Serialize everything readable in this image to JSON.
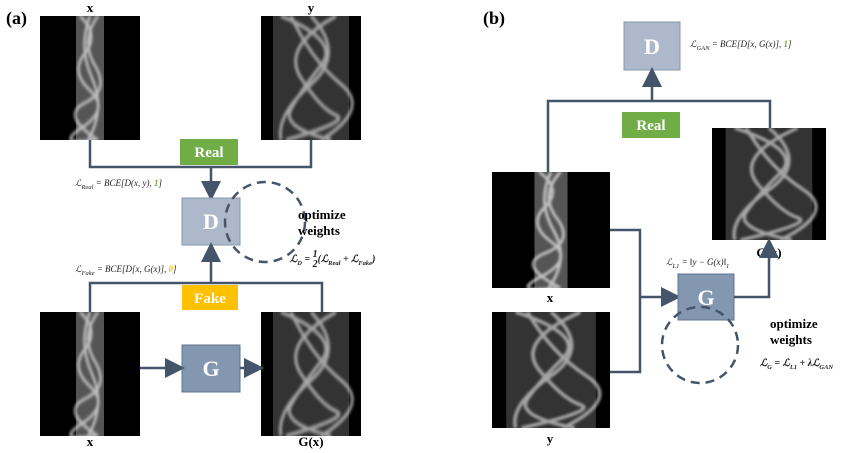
{
  "panel_a": {
    "label": "(a)",
    "x_top": "x",
    "y_top": "y",
    "x_bottom": "x",
    "gx_bottom": "G(x)",
    "real": "Real",
    "fake": "Fake",
    "discriminator": "D",
    "generator": "G",
    "optimize": [
      "optimize",
      "weights"
    ],
    "loss_real": [
      {
        "text": "ℒ"
      },
      {
        "text": "Real",
        "style": "sub"
      },
      {
        "text": " = BCE[D(x, y), "
      },
      {
        "text": "1",
        "style": "green"
      },
      {
        "text": "]"
      }
    ],
    "loss_fake": [
      {
        "text": "ℒ"
      },
      {
        "text": "Fake",
        "style": "sub"
      },
      {
        "text": " = BCE[D[x, G(x)], "
      },
      {
        "text": "0",
        "style": "gold"
      },
      {
        "text": "]"
      }
    ],
    "loss_d": [
      {
        "text": "ℒ"
      },
      {
        "text": "D",
        "style": "sub"
      },
      {
        "text": " = "
      },
      {
        "text": "1",
        "style": "num"
      },
      {
        "text": "2",
        "style": "den"
      },
      {
        "text": "(ℒ"
      },
      {
        "text": "Real",
        "style": "sub"
      },
      {
        "text": " + ℒ"
      },
      {
        "text": "Fake",
        "style": "sub"
      },
      {
        "text": ")"
      }
    ]
  },
  "panel_b": {
    "label": "(b)",
    "discriminator": "D",
    "real": "Real",
    "gx": "G(x)",
    "x": "x",
    "y": "y",
    "generator": "G",
    "optimize": [
      "optimize",
      "weights"
    ],
    "loss_gan": [
      {
        "text": "ℒ"
      },
      {
        "text": "GAN",
        "style": "sub"
      },
      {
        "text": " = BCE[D[x, G(x)], "
      },
      {
        "text": "1",
        "style": "green"
      },
      {
        "text": "]"
      }
    ],
    "loss_l1": [
      {
        "text": "ℒ"
      },
      {
        "text": "L1",
        "style": "sub"
      },
      {
        "text": " = ‖y − G(x)‖"
      },
      {
        "text": "1",
        "style": "sub"
      }
    ],
    "loss_g": [
      {
        "text": "ℒ"
      },
      {
        "text": "G",
        "style": "sub"
      },
      {
        "text": " = ℒ"
      },
      {
        "text": "L1",
        "style": "sub"
      },
      {
        "text": " + λℒ"
      },
      {
        "text": "GAN",
        "style": "sub"
      }
    ]
  }
}
